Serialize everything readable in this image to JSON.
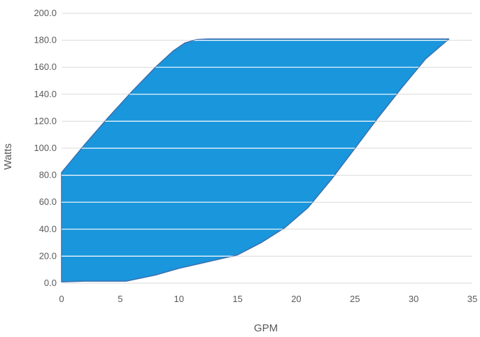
{
  "chart_data": {
    "type": "area",
    "title": "",
    "xlabel": "GPM",
    "ylabel": "Watts",
    "xlim": [
      0,
      35
    ],
    "ylim": [
      0,
      200
    ],
    "x_ticks": [
      "0",
      "5",
      "10",
      "15",
      "20",
      "25",
      "30",
      "35"
    ],
    "y_ticks": [
      "0.0",
      "20.0",
      "40.0",
      "60.0",
      "80.0",
      "100.0",
      "120.0",
      "140.0",
      "160.0",
      "180.0",
      "200.0"
    ],
    "grid": true,
    "legend": "none",
    "fill_color": "#1a96dc",
    "series": [
      {
        "values_upper_boundary": {
          "x": [
            0,
            2,
            4,
            6,
            8,
            9.5,
            10.5,
            11.5,
            12.5,
            20,
            25,
            30,
            33
          ],
          "y": [
            82,
            103,
            123,
            142,
            160,
            172,
            178,
            180.5,
            181,
            181,
            181,
            181,
            181
          ]
        },
        "values_lower_boundary": {
          "x": [
            0,
            2,
            5.5,
            8,
            10,
            12,
            15,
            17,
            19,
            21,
            23,
            25,
            27,
            29,
            31,
            33
          ],
          "y": [
            1,
            1.5,
            1.5,
            6,
            11,
            15,
            21,
            30,
            41,
            56,
            77,
            100,
            123,
            145,
            166,
            181
          ]
        }
      }
    ]
  }
}
